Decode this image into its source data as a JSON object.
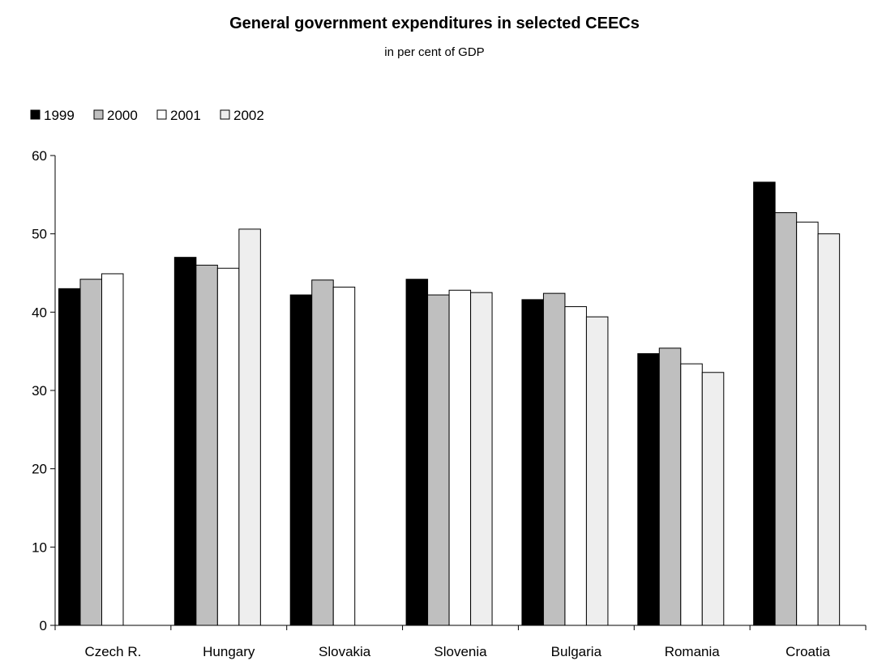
{
  "chart_data": {
    "type": "bar",
    "title": "General government expenditures in selected CEECs",
    "subtitle": "in per cent of GDP",
    "xlabel": "",
    "ylabel": "",
    "ylim": [
      0,
      60
    ],
    "yticks": [
      0,
      10,
      20,
      30,
      40,
      50,
      60
    ],
    "grid": false,
    "legend_position": "top-left",
    "categories": [
      "Czech R.",
      "Hungary",
      "Slovakia",
      "Slovenia",
      "Bulgaria",
      "Romania",
      "Croatia"
    ],
    "series": [
      {
        "name": "1999",
        "color": "#000000",
        "values": [
          43.0,
          47.0,
          42.2,
          44.2,
          41.6,
          34.7,
          56.6
        ]
      },
      {
        "name": "2000",
        "color": "#bfbfbf",
        "values": [
          44.2,
          46.0,
          44.1,
          42.2,
          42.4,
          35.4,
          52.7
        ]
      },
      {
        "name": "2001",
        "color": "#ffffff",
        "values": [
          44.9,
          45.6,
          43.2,
          42.8,
          40.7,
          33.4,
          51.5
        ]
      },
      {
        "name": "2002",
        "color": "#eeeeee",
        "values": [
          null,
          50.6,
          null,
          42.5,
          39.4,
          32.3,
          50.0
        ]
      }
    ]
  }
}
